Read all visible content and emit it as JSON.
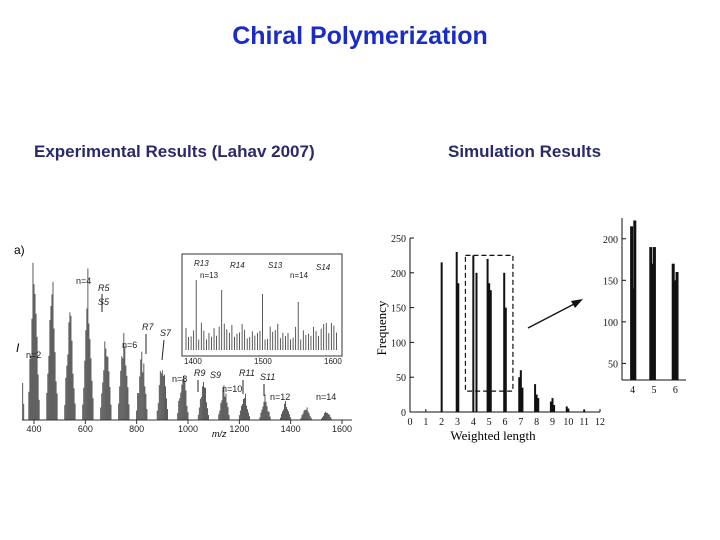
{
  "colors": {
    "title": "#1a2cc8",
    "subtitle": "#2a2a6a",
    "ink": "#111111",
    "spectrum": "#333333"
  },
  "title": "Chiral Polymerization",
  "left_heading": "Experimental Results (Lahav 2007)",
  "right_heading": "Simulation Results",
  "experimental": {
    "panel_label": "a)",
    "y_label": "I",
    "x_label": "m/z",
    "x_ticks": [
      "400",
      "600",
      "800",
      "1000",
      "1200",
      "1400",
      "1600"
    ],
    "annotations": [
      "n=4",
      "R5",
      "S5",
      "R7",
      "S7",
      "n=2",
      "n=6",
      "n=8",
      "R9",
      "S9",
      "n=10",
      "R11",
      "S11",
      "n=12",
      "n=14"
    ],
    "inset": {
      "x_ticks": [
        "1400",
        "1500",
        "1600"
      ],
      "annotations": [
        "R13",
        "R14",
        "S13",
        "S14",
        "n=13",
        "n=14"
      ]
    }
  },
  "chart_data": [
    {
      "type": "bar",
      "title": "",
      "xlabel": "Weighted length",
      "ylabel": "Frequency",
      "x_ticks": [
        "0",
        "1",
        "2",
        "3",
        "4",
        "5",
        "6",
        "7",
        "8",
        "9",
        "10",
        "11",
        "12"
      ],
      "y_ticks": [
        "0",
        "50",
        "100",
        "150",
        "200",
        "250"
      ],
      "xlim": [
        0,
        12
      ],
      "ylim": [
        0,
        250
      ],
      "x": [
        2,
        2.95,
        3.05,
        4,
        4.2,
        4.9,
        5,
        5.1,
        5.95,
        6.05,
        6.9,
        7,
        7.1,
        7.9,
        8,
        8.1,
        8.9,
        9,
        9.1,
        9.9,
        10,
        11
      ],
      "values": [
        215,
        230,
        185,
        225,
        200,
        220,
        185,
        175,
        200,
        150,
        50,
        60,
        35,
        40,
        25,
        20,
        15,
        20,
        10,
        8,
        5,
        3
      ],
      "zoom_region": {
        "x": [
          3.5,
          6.5
        ],
        "y": [
          30,
          225
        ]
      }
    },
    {
      "type": "bar",
      "title": "",
      "x_ticks": [
        "4",
        "5",
        "6"
      ],
      "y_ticks": [
        "50",
        "100",
        "150",
        "200"
      ],
      "xlim": [
        3.5,
        6.5
      ],
      "ylim": [
        30,
        225
      ],
      "x": [
        3.95,
        4.02,
        4.1,
        4.85,
        4.95,
        5.02,
        5.9,
        6.0,
        6.08
      ],
      "values": [
        215,
        140,
        222,
        190,
        170,
        190,
        170,
        150,
        160
      ]
    }
  ]
}
